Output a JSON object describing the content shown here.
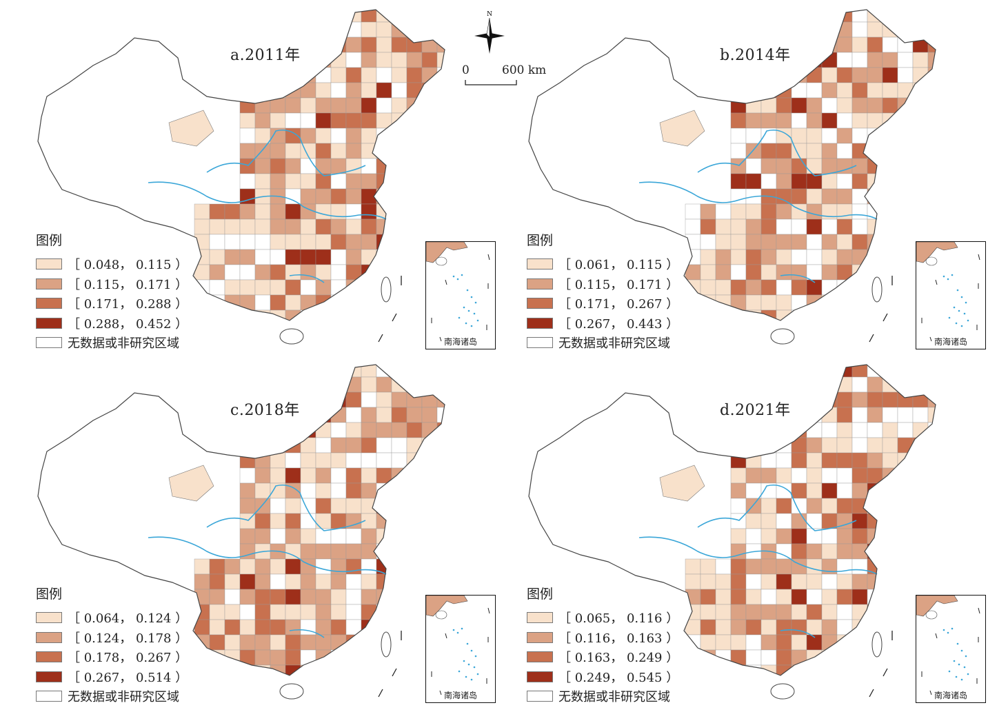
{
  "compass": {
    "north_label": "N"
  },
  "scale_bar": {
    "start": "0",
    "end": "600 km"
  },
  "panels": [
    {
      "title": "a.2011年",
      "legend_title": "图例",
      "legend": [
        {
          "label": "［ 0.048， 0.115 ）",
          "color": "#f8e1cb"
        },
        {
          "label": "［ 0.115， 0.171 ）",
          "color": "#dba284"
        },
        {
          "label": "［ 0.171， 0.288 ）",
          "color": "#c8714f"
        },
        {
          "label": "［ 0.288， 0.452 ）",
          "color": "#9e2f1a"
        },
        {
          "label": "无数据或非研究区域",
          "color": "#ffffff"
        }
      ],
      "inset_label": "南海诸岛"
    },
    {
      "title": "b.2014年",
      "legend_title": "图例",
      "legend": [
        {
          "label": "［ 0.061， 0.115 ）",
          "color": "#f8e1cb"
        },
        {
          "label": "［ 0.115， 0.171 ）",
          "color": "#dba284"
        },
        {
          "label": "［ 0.171， 0.267 ）",
          "color": "#c8714f"
        },
        {
          "label": "［ 0.267， 0.443 ）",
          "color": "#9e2f1a"
        },
        {
          "label": "无数据或非研究区域",
          "color": "#ffffff"
        }
      ],
      "inset_label": "南海诸岛"
    },
    {
      "title": "c.2018年",
      "legend_title": "图例",
      "legend": [
        {
          "label": "［ 0.064， 0.124 ）",
          "color": "#f8e1cb"
        },
        {
          "label": "［ 0.124， 0.178 ）",
          "color": "#dba284"
        },
        {
          "label": "［ 0.178， 0.267 ）",
          "color": "#c8714f"
        },
        {
          "label": "［ 0.267， 0.514 ）",
          "color": "#9e2f1a"
        },
        {
          "label": "无数据或非研究区域",
          "color": "#ffffff"
        }
      ],
      "inset_label": "南海诸岛"
    },
    {
      "title": "d.2021年",
      "legend_title": "图例",
      "legend": [
        {
          "label": "［ 0.065， 0.116 ）",
          "color": "#f8e1cb"
        },
        {
          "label": "［ 0.116， 0.163 ）",
          "color": "#dba284"
        },
        {
          "label": "［ 0.163， 0.249 ）",
          "color": "#c8714f"
        },
        {
          "label": "［ 0.249， 0.545 ）",
          "color": "#9e2f1a"
        },
        {
          "label": "无数据或非研究区域",
          "color": "#ffffff"
        }
      ],
      "inset_label": "南海诸岛"
    }
  ],
  "colors": {
    "river": "#3aa6d8",
    "boundary": "#444444"
  }
}
